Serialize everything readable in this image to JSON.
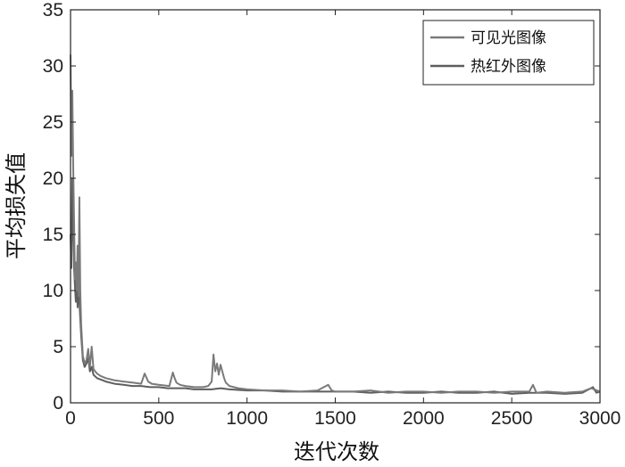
{
  "chart_data": {
    "type": "line",
    "xlabel": "迭代次数",
    "ylabel": "平均损失值",
    "xlim": [
      0,
      3000
    ],
    "ylim": [
      0,
      35
    ],
    "x_ticks": [
      "0",
      "500",
      "1000",
      "1500",
      "2000",
      "2500",
      "3000"
    ],
    "y_ticks": [
      "0",
      "5",
      "10",
      "15",
      "20",
      "25",
      "30",
      "35"
    ],
    "grid": false,
    "legend_position": "top-right",
    "series": [
      {
        "name": "可见光图像",
        "color": "#7a7a7a",
        "x": [
          0,
          5,
          10,
          15,
          20,
          25,
          30,
          35,
          40,
          45,
          50,
          55,
          60,
          70,
          80,
          90,
          100,
          110,
          120,
          130,
          140,
          150,
          170,
          200,
          250,
          300,
          350,
          400,
          420,
          440,
          460,
          500,
          560,
          580,
          590,
          600,
          620,
          650,
          700,
          750,
          780,
          800,
          810,
          820,
          830,
          840,
          850,
          860,
          870,
          880,
          900,
          950,
          1000,
          1100,
          1200,
          1300,
          1400,
          1460,
          1480,
          1500,
          1600,
          1700,
          1800,
          1900,
          2000,
          2100,
          2200,
          2300,
          2400,
          2500,
          2600,
          2620,
          2640,
          2700,
          2800,
          2900,
          2950,
          3000
        ],
        "values": [
          31,
          22,
          27.8,
          21,
          16,
          11,
          12.5,
          10,
          14,
          9.5,
          18.3,
          10,
          7,
          4.2,
          3.5,
          3.8,
          4.8,
          3.2,
          5,
          3,
          2.8,
          2.6,
          2.4,
          2.2,
          2,
          1.9,
          1.8,
          1.7,
          2.6,
          1.9,
          1.7,
          1.6,
          1.5,
          2.7,
          2.2,
          1.8,
          1.6,
          1.5,
          1.4,
          1.4,
          1.5,
          1.9,
          4.3,
          2.8,
          3.5,
          2.5,
          3.4,
          2.8,
          2.2,
          1.8,
          1.5,
          1.3,
          1.2,
          1.1,
          1.1,
          1.0,
          1.1,
          1.6,
          1.1,
          1.0,
          1.0,
          1.1,
          0.9,
          1.0,
          1.0,
          0.9,
          1.0,
          1.0,
          0.9,
          1.0,
          1.0,
          1.6,
          0.9,
          1.0,
          0.9,
          1.0,
          1.3,
          1.0
        ]
      },
      {
        "name": "热红外图像",
        "color": "#5e5e5e",
        "x": [
          0,
          5,
          10,
          15,
          20,
          25,
          30,
          35,
          40,
          45,
          50,
          55,
          60,
          70,
          80,
          90,
          100,
          110,
          120,
          130,
          150,
          200,
          250,
          300,
          350,
          400,
          450,
          500,
          550,
          600,
          650,
          700,
          750,
          800,
          850,
          900,
          1000,
          1100,
          1200,
          1300,
          1400,
          1500,
          1600,
          1700,
          1800,
          1900,
          2000,
          2100,
          2200,
          2300,
          2400,
          2500,
          2600,
          2700,
          2800,
          2900,
          2960,
          2980,
          3000
        ],
        "values": [
          15,
          12,
          20,
          16,
          12,
          10.5,
          9,
          11,
          8.5,
          13,
          9,
          7.5,
          6,
          3.8,
          3.2,
          3.5,
          4,
          2.8,
          3.2,
          2.5,
          2.2,
          1.9,
          1.7,
          1.6,
          1.5,
          1.5,
          1.4,
          1.4,
          1.3,
          1.3,
          1.3,
          1.2,
          1.2,
          1.2,
          1.3,
          1.2,
          1.1,
          1.1,
          1.0,
          1.0,
          1.0,
          1.0,
          1.0,
          0.9,
          1.0,
          0.9,
          0.9,
          1.0,
          0.9,
          0.9,
          1.0,
          0.8,
          0.9,
          0.9,
          0.8,
          0.9,
          1.4,
          0.9,
          1.0
        ]
      }
    ]
  }
}
